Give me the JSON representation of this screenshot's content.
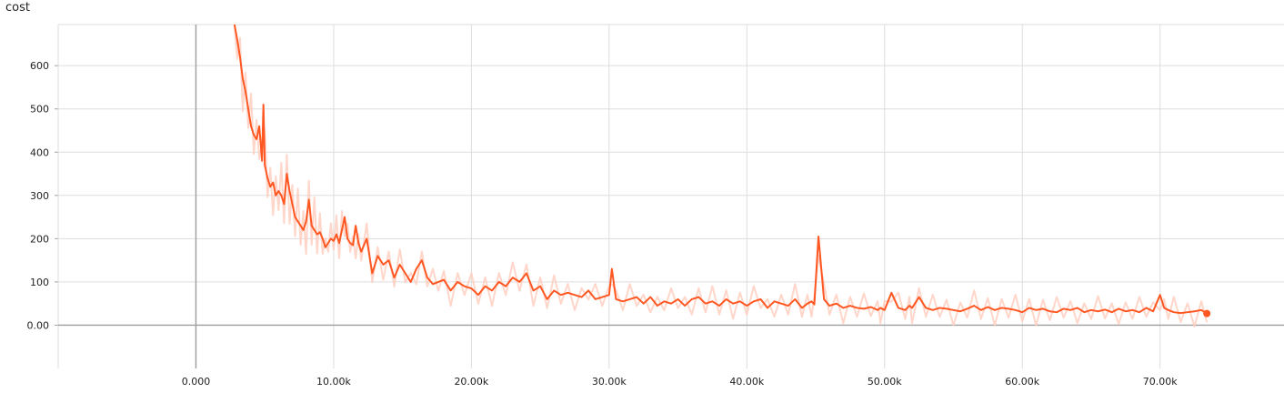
{
  "chart_data": {
    "type": "line",
    "title": "cost",
    "xlabel": "",
    "ylabel": "",
    "xlim": [
      -10000,
      79000
    ],
    "ylim": [
      -100,
      695
    ],
    "x_ticks": [
      0,
      10000,
      20000,
      30000,
      40000,
      50000,
      60000,
      70000
    ],
    "x_tick_labels": [
      "0.000",
      "10.00k",
      "20.00k",
      "30.00k",
      "40.00k",
      "50.00k",
      "60.00k",
      "70.00k"
    ],
    "y_ticks": [
      0,
      100,
      200,
      300,
      400,
      500,
      600
    ],
    "y_tick_labels": [
      "0.00",
      "100",
      "200",
      "300",
      "400",
      "500",
      "600"
    ],
    "grid": true,
    "colors": {
      "smoothed": "#ff5722",
      "raw": "#ffccbc",
      "axis": "#9e9e9e",
      "grid": "#dddddd"
    },
    "series": [
      {
        "name": "",
        "x": [
          2800,
          3000,
          3200,
          3400,
          3600,
          3800,
          4000,
          4200,
          4400,
          4600,
          4800,
          4900,
          5000,
          5200,
          5400,
          5600,
          5800,
          6000,
          6200,
          6400,
          6600,
          6800,
          7000,
          7200,
          7400,
          7600,
          7800,
          8000,
          8200,
          8400,
          8600,
          8800,
          9000,
          9200,
          9400,
          9600,
          9800,
          10000,
          10200,
          10400,
          10600,
          10800,
          11000,
          11200,
          11400,
          11600,
          11800,
          12000,
          12400,
          12800,
          13200,
          13600,
          14000,
          14400,
          14800,
          15200,
          15600,
          16000,
          16400,
          16800,
          17200,
          17600,
          18000,
          18500,
          19000,
          19500,
          20000,
          20500,
          21000,
          21500,
          22000,
          22500,
          23000,
          23500,
          24000,
          24500,
          25000,
          25500,
          26000,
          26500,
          27000,
          27500,
          28000,
          28500,
          29000,
          29500,
          30000,
          30200,
          30500,
          31000,
          31500,
          32000,
          32500,
          33000,
          33500,
          34000,
          34500,
          35000,
          35500,
          36000,
          36500,
          37000,
          37500,
          38000,
          38500,
          39000,
          39500,
          40000,
          40500,
          41000,
          41500,
          42000,
          42500,
          43000,
          43500,
          44000,
          44400,
          44700,
          44900,
          45200,
          45600,
          46000,
          46500,
          47000,
          47500,
          48000,
          48500,
          49000,
          49500,
          49700,
          50000,
          50500,
          51000,
          51500,
          51800,
          52000,
          52500,
          53000,
          53500,
          54000,
          54500,
          55000,
          55500,
          56000,
          56500,
          57000,
          57500,
          58000,
          58500,
          59000,
          59500,
          60000,
          60500,
          61000,
          61500,
          62000,
          62500,
          63000,
          63500,
          64000,
          64500,
          65000,
          65500,
          66000,
          66500,
          67000,
          67500,
          68000,
          68500,
          69000,
          69500,
          70000,
          70300,
          70600,
          71000,
          71500,
          72000,
          72500,
          73000,
          73400
        ],
        "values": [
          695,
          660,
          620,
          570,
          540,
          500,
          460,
          440,
          430,
          460,
          380,
          510,
          370,
          340,
          320,
          330,
          300,
          310,
          300,
          280,
          350,
          310,
          280,
          250,
          240,
          230,
          220,
          240,
          290,
          230,
          220,
          210,
          215,
          200,
          180,
          190,
          200,
          195,
          210,
          190,
          220,
          250,
          200,
          190,
          185,
          230,
          190,
          170,
          200,
          120,
          160,
          140,
          150,
          110,
          140,
          120,
          100,
          130,
          150,
          110,
          95,
          100,
          105,
          80,
          100,
          90,
          85,
          70,
          90,
          80,
          100,
          90,
          110,
          100,
          120,
          80,
          90,
          60,
          80,
          70,
          75,
          70,
          65,
          80,
          60,
          65,
          70,
          130,
          60,
          55,
          60,
          65,
          50,
          65,
          45,
          55,
          50,
          60,
          45,
          60,
          65,
          50,
          55,
          45,
          60,
          50,
          55,
          45,
          55,
          60,
          40,
          55,
          50,
          45,
          60,
          40,
          50,
          55,
          48,
          205,
          60,
          45,
          50,
          40,
          45,
          40,
          38,
          42,
          35,
          40,
          35,
          75,
          40,
          35,
          45,
          40,
          65,
          40,
          35,
          40,
          38,
          35,
          32,
          38,
          45,
          35,
          42,
          35,
          40,
          38,
          35,
          30,
          40,
          35,
          38,
          32,
          30,
          38,
          35,
          40,
          30,
          35,
          32,
          36,
          30,
          38,
          32,
          35,
          30,
          40,
          32,
          70,
          40,
          35,
          30,
          28,
          30,
          32,
          35,
          27
        ]
      }
    ]
  }
}
